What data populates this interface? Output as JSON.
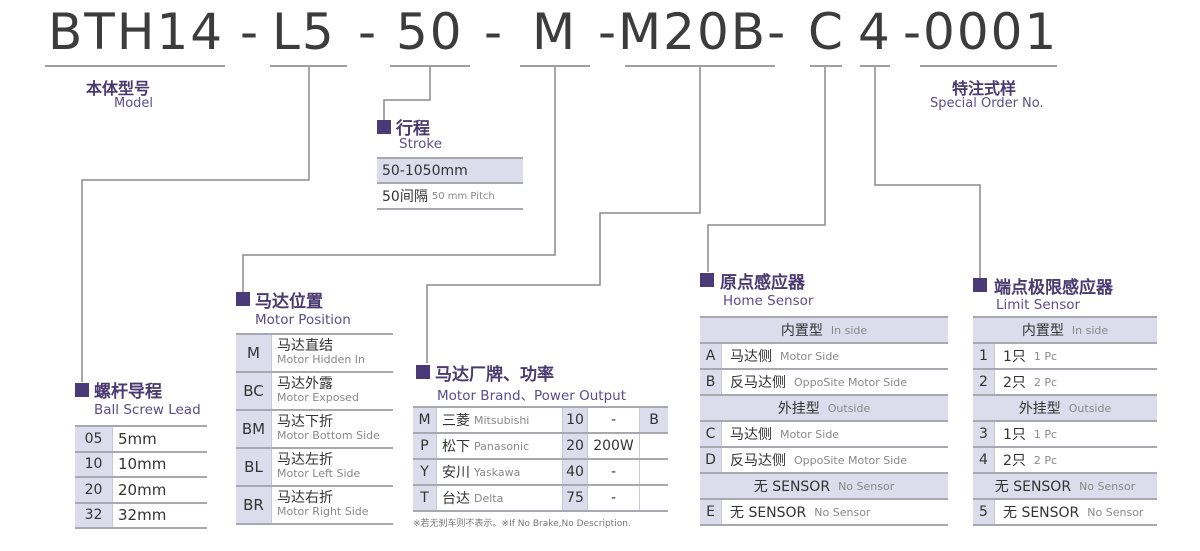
{
  "code": {
    "model": "BTH14",
    "dash1": "-",
    "lead": "L5",
    "dash2": "-",
    "stroke": "50",
    "dash3": "-",
    "position": "M",
    "motor": "-M20B-",
    "home": "C",
    "limit": "4",
    "special": "-0001"
  },
  "model_label": {
    "cn": "本体型号",
    "en": "Model"
  },
  "special_label": {
    "cn": "特注式样",
    "en": "Special Order No."
  },
  "stroke": {
    "cn": "行程",
    "en": "Stroke",
    "range": "50-1050mm",
    "pitch_cn": "50间隔",
    "pitch_en": "50 mm Pitch"
  },
  "lead": {
    "cn": "螺杆导程",
    "en": "Ball Screw Lead",
    "rows": [
      [
        "05",
        "5mm"
      ],
      [
        "10",
        "10mm"
      ],
      [
        "20",
        "20mm"
      ],
      [
        "32",
        "32mm"
      ]
    ]
  },
  "position": {
    "cn": "马达位置",
    "en": "Motor Position",
    "rows": [
      [
        "M",
        "马达直结",
        "Motor Hidden In"
      ],
      [
        "BC",
        "马达外露",
        "Motor Exposed"
      ],
      [
        "BM",
        "马达下折",
        "Motor Bottom Side"
      ],
      [
        "BL",
        "马达左折",
        "Motor Left Side"
      ],
      [
        "BR",
        "马达右折",
        "Motor Right Side"
      ]
    ]
  },
  "brand": {
    "cn": "马达厂牌、功率",
    "en": "Motor Brand、Power Output",
    "rows": [
      [
        "M",
        "三菱",
        "Mitsubishi",
        "10",
        "-",
        "B"
      ],
      [
        "P",
        "松下",
        "Panasonic",
        "20",
        "200W",
        ""
      ],
      [
        "Y",
        "安川",
        "Yaskawa",
        "40",
        "-",
        ""
      ],
      [
        "T",
        "台达",
        "Delta",
        "75",
        "-",
        ""
      ]
    ],
    "note": "※若无刹车则不表示。※If No Brake,No Description."
  },
  "home": {
    "cn": "原点感应器",
    "en": "Home Sensor",
    "rows": [
      {
        "h": true,
        "cn": "内置型",
        "en": "In side"
      },
      {
        "code": "A",
        "cn": "马达侧",
        "en": "Motor Side"
      },
      {
        "code": "B",
        "cn": "反马达侧",
        "en": "OppoSite Motor Side"
      },
      {
        "h": true,
        "cn": "外挂型",
        "en": "Outside"
      },
      {
        "code": "C",
        "cn": "马达侧",
        "en": "Motor Side"
      },
      {
        "code": "D",
        "cn": "反马达侧",
        "en": "OppoSite Motor Side"
      },
      {
        "h": true,
        "cn": "无 SENSOR",
        "en": "No Sensor"
      },
      {
        "code": "E",
        "cn": "无 SENSOR",
        "en": "No Sensor"
      }
    ]
  },
  "limit": {
    "cn": "端点极限感应器",
    "en": "Limit Sensor",
    "rows": [
      {
        "h": true,
        "cn": "内置型",
        "en": "In side"
      },
      {
        "code": "1",
        "cn": "1只",
        "en": "1 Pc"
      },
      {
        "code": "2",
        "cn": "2只",
        "en": "2 Pc"
      },
      {
        "h": true,
        "cn": "外挂型",
        "en": "Outside"
      },
      {
        "code": "3",
        "cn": "1只",
        "en": "1 Pc"
      },
      {
        "code": "4",
        "cn": "2只",
        "en": "2 Pc"
      },
      {
        "h": true,
        "cn": "无 SENSOR",
        "en": "No Sensor"
      },
      {
        "code": "5",
        "cn": "无 SENSOR",
        "en": "No Sensor"
      }
    ]
  },
  "colors": {
    "accent": "#4b3a78",
    "shade": "#dcdcec",
    "line": "#8a8a8a"
  }
}
